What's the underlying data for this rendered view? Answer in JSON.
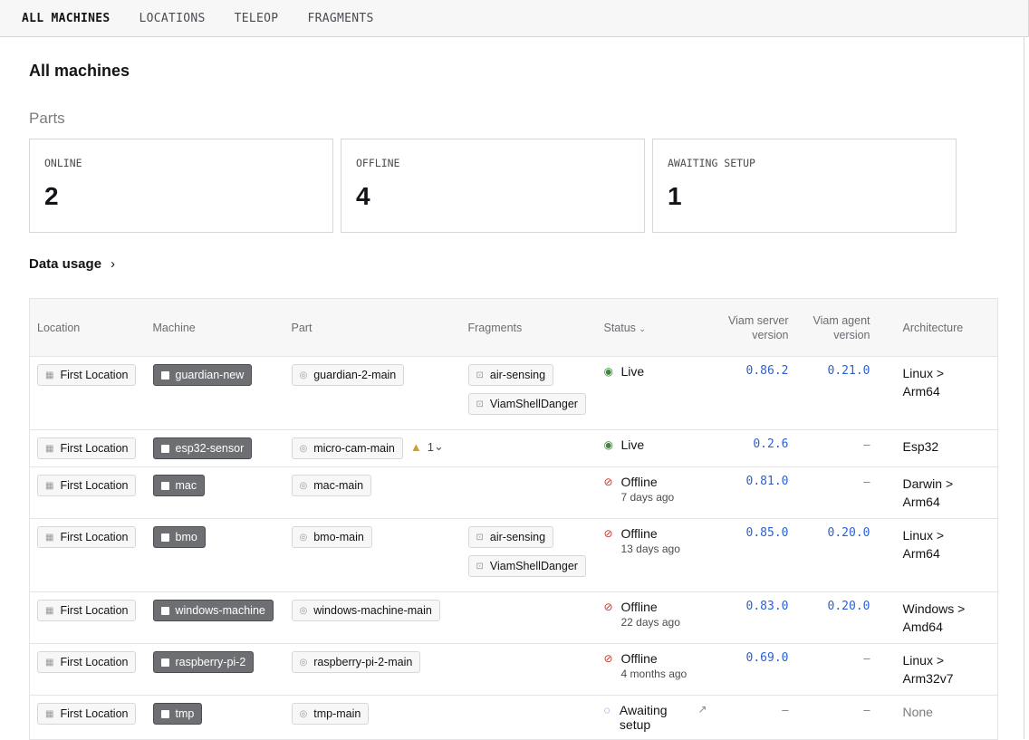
{
  "nav": {
    "tabs": [
      {
        "label": "ALL MACHINES",
        "active": true
      },
      {
        "label": "LOCATIONS"
      },
      {
        "label": "TELEOP"
      },
      {
        "label": "FRAGMENTS"
      }
    ]
  },
  "page_title": "All machines",
  "parts": {
    "heading": "Parts",
    "cards": [
      {
        "label": "ONLINE",
        "value": "2"
      },
      {
        "label": "OFFLINE",
        "value": "4"
      },
      {
        "label": "AWAITING SETUP",
        "value": "1"
      }
    ]
  },
  "data_usage": {
    "label": "Data usage",
    "chevron": "›"
  },
  "table": {
    "headers": {
      "location": "Location",
      "machine": "Machine",
      "part": "Part",
      "fragments": "Fragments",
      "status": "Status",
      "server": "Viam server version",
      "agent": "Viam agent version",
      "arch": "Architecture"
    },
    "colors": {
      "live": "#3f8a3a",
      "offline": "#c0392b",
      "awaiting": "#2a62d2",
      "version": "#2a62d2"
    },
    "rows": [
      {
        "location": "First Location",
        "machine": "guardian-new",
        "part": "guardian-2-main",
        "fragments": [
          "air-sensing",
          "ViamShellDanger"
        ],
        "status": "Live",
        "status_type": "live",
        "server": "0.86.2",
        "agent": "0.21.0",
        "arch": [
          "Linux >",
          "Arm64"
        ]
      },
      {
        "location": "First Location",
        "machine": "esp32-sensor",
        "part": "micro-cam-main",
        "warning_count": "1",
        "fragments": [],
        "status": "Live",
        "status_type": "live",
        "server": "0.2.6",
        "agent": "–",
        "arch": [
          "Esp32"
        ]
      },
      {
        "location": "First Location",
        "machine": "mac",
        "part": "mac-main",
        "fragments": [],
        "status": "Offline",
        "status_sub": "7 days ago",
        "status_type": "offline",
        "server": "0.81.0",
        "agent": "–",
        "arch": [
          "Darwin >",
          "Arm64"
        ]
      },
      {
        "location": "First Location",
        "machine": "bmo",
        "part": "bmo-main",
        "fragments": [
          "air-sensing",
          "ViamShellDanger"
        ],
        "status": "Offline",
        "status_sub": "13 days ago",
        "status_type": "offline",
        "server": "0.85.0",
        "agent": "0.20.0",
        "arch": [
          "Linux >",
          "Arm64"
        ]
      },
      {
        "location": "First Location",
        "machine": "windows-machine",
        "part": "windows-machine-main",
        "fragments": [],
        "status": "Offline",
        "status_sub": "22 days ago",
        "status_type": "offline",
        "server": "0.83.0",
        "agent": "0.20.0",
        "arch": [
          "Windows >",
          "Amd64"
        ]
      },
      {
        "location": "First Location",
        "machine": "raspberry-pi-2",
        "part": "raspberry-pi-2-main",
        "fragments": [],
        "status": "Offline",
        "status_sub": "4 months ago",
        "status_type": "offline",
        "server": "0.69.0",
        "agent": "–",
        "arch": [
          "Linux >",
          "Arm32v7"
        ]
      },
      {
        "location": "First Location",
        "machine": "tmp",
        "part": "tmp-main",
        "fragments": [],
        "status": "Awaiting setup",
        "status_type": "awaiting",
        "server": "–",
        "agent": "–",
        "arch": [
          "None"
        ]
      }
    ]
  }
}
